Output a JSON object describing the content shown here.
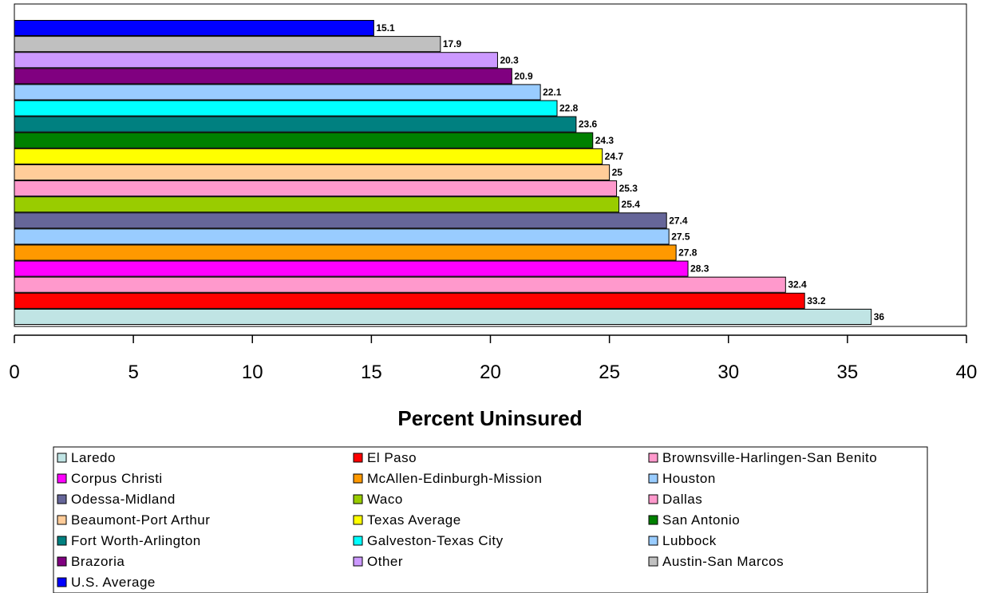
{
  "chart_data": {
    "type": "bar",
    "orientation": "horizontal",
    "xlabel": "Percent Uninsured",
    "xlim": [
      0,
      40
    ],
    "xticks": [
      0,
      5,
      10,
      15,
      20,
      25,
      30,
      35,
      40
    ],
    "grid": false,
    "legend_position": "bottom",
    "series": [
      {
        "name": "Laredo",
        "value": 36,
        "color": "#C0E4E4"
      },
      {
        "name": "El Paso",
        "value": 33.2,
        "color": "#FF0000"
      },
      {
        "name": "Brownsville-Harlingen-San Benito",
        "value": 32.4,
        "color": "#FF99CC"
      },
      {
        "name": "Corpus Christi",
        "value": 28.3,
        "color": "#FF00FF"
      },
      {
        "name": "McAllen-Edinburgh-Mission",
        "value": 27.8,
        "color": "#FF9900"
      },
      {
        "name": "Houston",
        "value": 27.5,
        "color": "#99CCFF"
      },
      {
        "name": "Odessa-Midland",
        "value": 27.4,
        "color": "#666699"
      },
      {
        "name": "Waco",
        "value": 25.4,
        "color": "#99CC00"
      },
      {
        "name": "Dallas",
        "value": 25.3,
        "color": "#FF99CC"
      },
      {
        "name": "Beaumont-Port Arthur",
        "value": 25,
        "color": "#FFCC99"
      },
      {
        "name": "Texas Average",
        "value": 24.7,
        "color": "#FFFF00"
      },
      {
        "name": "San Antonio",
        "value": 24.3,
        "color": "#008000"
      },
      {
        "name": "Fort Worth-Arlington",
        "value": 23.6,
        "color": "#008080"
      },
      {
        "name": "Galveston-Texas City",
        "value": 22.8,
        "color": "#00FFFF"
      },
      {
        "name": "Lubbock",
        "value": 22.1,
        "color": "#99CCFF"
      },
      {
        "name": "Brazoria",
        "value": 20.9,
        "color": "#800080"
      },
      {
        "name": "Other",
        "value": 20.3,
        "color": "#CC99FF"
      },
      {
        "name": "Austin-San Marcos",
        "value": 17.9,
        "color": "#C0C0C0"
      },
      {
        "name": "U.S. Average",
        "value": 15.1,
        "color": "#0000FF"
      }
    ]
  }
}
